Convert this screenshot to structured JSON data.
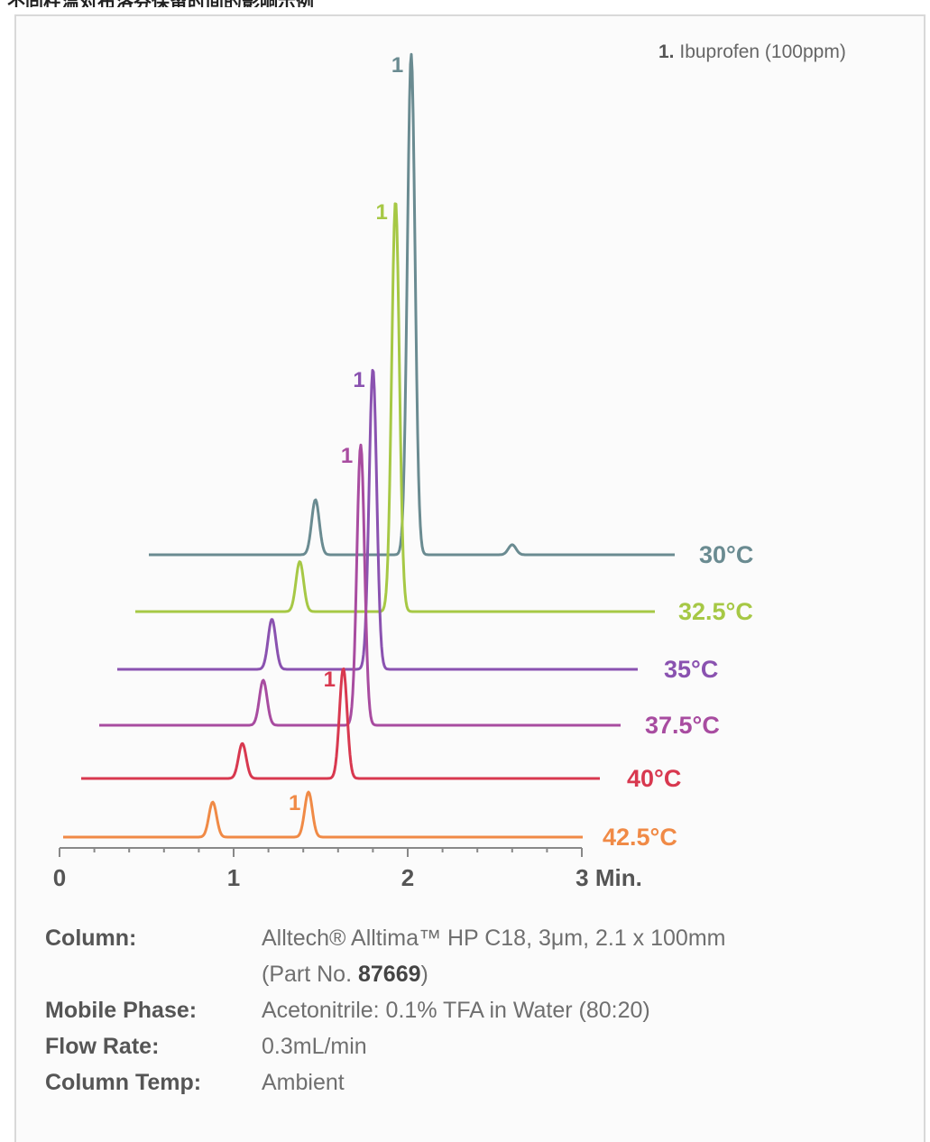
{
  "top_caption": "不同柱温对布洛芬保留时间的影响示例",
  "legend": {
    "number": "1.",
    "text": "Ibuprofen (100ppm)"
  },
  "chart_data": {
    "type": "line",
    "title": "",
    "xlabel": "",
    "ylabel": "",
    "x_ticks": [
      "0",
      "1",
      "2",
      "3 Min."
    ],
    "xlim": [
      0,
      3
    ],
    "peak_label": "1",
    "colors": {
      "axis": "#888888"
    },
    "series": [
      {
        "name": "30°C",
        "color": "#6a8b91",
        "peaks": [
          {
            "t": 1.47,
            "h": 0.11
          },
          {
            "t": 2.02,
            "h": 1.0
          },
          {
            "t": 2.6,
            "h": 0.02
          }
        ]
      },
      {
        "name": "32.5°C",
        "color": "#a6c845",
        "peaks": [
          {
            "t": 1.38,
            "h": 0.1
          },
          {
            "t": 1.93,
            "h": 0.82
          }
        ]
      },
      {
        "name": "35°C",
        "color": "#8a52b0",
        "peaks": [
          {
            "t": 1.22,
            "h": 0.1
          },
          {
            "t": 1.8,
            "h": 0.6
          }
        ]
      },
      {
        "name": "37.5°C",
        "color": "#a84ca0",
        "peaks": [
          {
            "t": 1.17,
            "h": 0.09
          },
          {
            "t": 1.73,
            "h": 0.56
          }
        ]
      },
      {
        "name": "40°C",
        "color": "#d8384f",
        "peaks": [
          {
            "t": 1.05,
            "h": 0.07
          },
          {
            "t": 1.63,
            "h": 0.22
          }
        ]
      },
      {
        "name": "42.5°C",
        "color": "#f08a46",
        "peaks": [
          {
            "t": 0.88,
            "h": 0.07
          },
          {
            "t": 1.43,
            "h": 0.09
          }
        ]
      }
    ]
  },
  "conditions": {
    "column_label": "Column:",
    "column_value": "Alltech® Alltima™ HP C18, 3μm, 2.1 x 100mm",
    "part_prefix": "(Part No.",
    "part_number": "87669",
    "part_suffix": ")",
    "mobile_phase_label": "Mobile Phase:",
    "mobile_phase_value": "Acetonitrile: 0.1% TFA in Water (80:20)",
    "flow_rate_label": "Flow Rate:",
    "flow_rate_value": "0.3mL/min",
    "column_temp_label": "Column Temp:",
    "column_temp_value": "Ambient"
  }
}
